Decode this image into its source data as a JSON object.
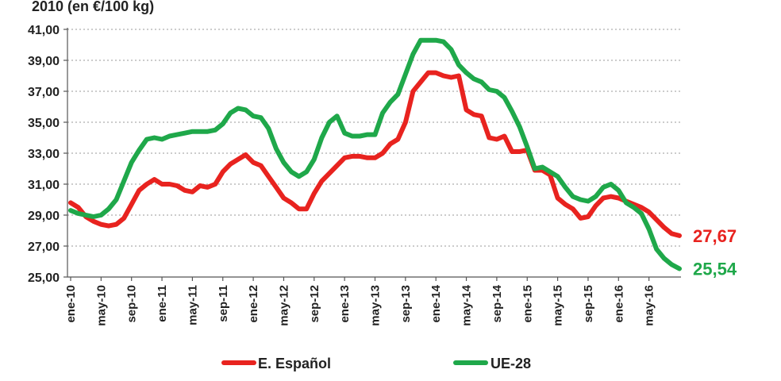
{
  "chart_data": {
    "type": "line",
    "title": "2010 (en €/100 kg)",
    "xlabel": "",
    "ylabel": "",
    "ylim": [
      25,
      41
    ],
    "y_ticks": [
      "41,00",
      "39,00",
      "37,00",
      "35,00",
      "33,00",
      "31,00",
      "29,00",
      "27,00",
      "25,00"
    ],
    "y_tick_values": [
      41,
      39,
      37,
      35,
      33,
      31,
      29,
      27,
      25
    ],
    "x_ticks": [
      "ene-10",
      "may-10",
      "sep-10",
      "ene-11",
      "may-11",
      "sep-11",
      "ene-12",
      "may-12",
      "sep-12",
      "ene-13",
      "may-13",
      "sep-13",
      "ene-14",
      "may-14",
      "sep-14",
      "ene-15",
      "may-15",
      "sep-15",
      "ene-16",
      "may-16"
    ],
    "x_tick_index": [
      0,
      4,
      8,
      12,
      16,
      20,
      24,
      28,
      32,
      36,
      40,
      44,
      48,
      52,
      56,
      60,
      64,
      68,
      72,
      76
    ],
    "grid": true,
    "legend_position": "bottom",
    "series": [
      {
        "name": "E. Español",
        "color": "#e8231f",
        "end_label": "27,67",
        "values": [
          29.8,
          29.5,
          28.9,
          28.6,
          28.4,
          28.3,
          28.4,
          28.8,
          29.7,
          30.6,
          31.0,
          31.3,
          31.0,
          31.0,
          30.9,
          30.6,
          30.5,
          30.9,
          30.8,
          31.0,
          31.8,
          32.3,
          32.6,
          32.9,
          32.4,
          32.2,
          31.5,
          30.8,
          30.1,
          29.8,
          29.4,
          29.4,
          30.4,
          31.2,
          31.7,
          32.2,
          32.7,
          32.8,
          32.8,
          32.7,
          32.7,
          33.0,
          33.6,
          33.9,
          35.0,
          37.0,
          37.6,
          38.2,
          38.2,
          38.0,
          37.9,
          38.0,
          35.8,
          35.5,
          35.4,
          34.0,
          33.9,
          34.1,
          33.1,
          33.1,
          33.2,
          31.9,
          31.9,
          31.6,
          30.1,
          29.7,
          29.4,
          28.8,
          28.9,
          29.6,
          30.1,
          30.2,
          30.1,
          29.9,
          29.7,
          29.5,
          29.2,
          28.7,
          28.2,
          27.8,
          27.67
        ]
      },
      {
        "name": "UE-28",
        "color": "#1fa84a",
        "end_label": "25,54",
        "values": [
          29.3,
          29.1,
          29.0,
          28.9,
          29.0,
          29.4,
          30.0,
          31.2,
          32.4,
          33.2,
          33.9,
          34.0,
          33.9,
          34.1,
          34.2,
          34.3,
          34.4,
          34.4,
          34.4,
          34.5,
          34.9,
          35.6,
          35.9,
          35.8,
          35.4,
          35.3,
          34.6,
          33.3,
          32.4,
          31.8,
          31.5,
          31.8,
          32.6,
          34.0,
          35.0,
          35.4,
          34.3,
          34.1,
          34.1,
          34.2,
          34.2,
          35.6,
          36.3,
          36.8,
          38.1,
          39.4,
          40.3,
          40.3,
          40.3,
          40.2,
          39.7,
          38.7,
          38.2,
          37.8,
          37.6,
          37.1,
          37.0,
          36.6,
          35.7,
          34.7,
          33.4,
          32.0,
          32.1,
          31.8,
          31.5,
          30.8,
          30.2,
          30.0,
          29.9,
          30.2,
          30.8,
          31.0,
          30.6,
          29.8,
          29.5,
          29.1,
          28.1,
          26.8,
          26.2,
          25.8,
          25.54
        ]
      }
    ]
  }
}
